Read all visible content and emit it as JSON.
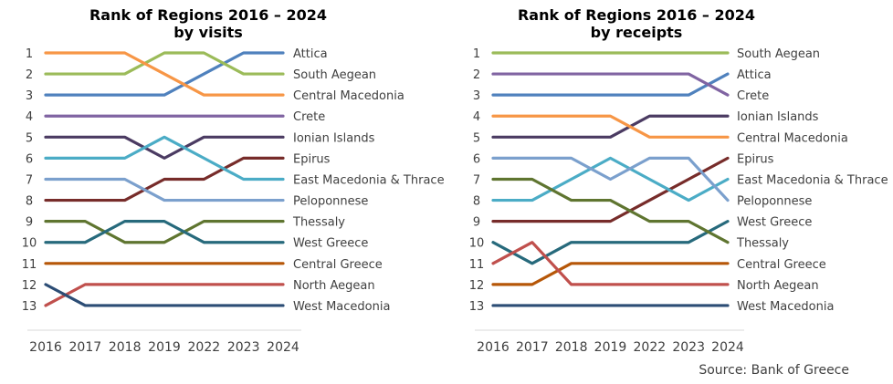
{
  "source": "Source: Bank of Greece",
  "chart_data": [
    {
      "type": "line",
      "title": [
        "Rank of Regions 2016 – 2024",
        "by visits"
      ],
      "categories": [
        "2016",
        "2017",
        "2018",
        "2019",
        "2022",
        "2023",
        "2024"
      ],
      "ylim": [
        13,
        1
      ],
      "yticks": [
        1,
        2,
        3,
        4,
        5,
        6,
        7,
        8,
        9,
        10,
        11,
        12,
        13
      ],
      "grid": false,
      "legend": "right-end-labels",
      "series": [
        {
          "name": "Attica",
          "color": "#4F81BD",
          "values": [
            3,
            3,
            3,
            3,
            2,
            1,
            1
          ]
        },
        {
          "name": "South Aegean",
          "color": "#9BBB59",
          "values": [
            2,
            2,
            2,
            1,
            1,
            2,
            2
          ]
        },
        {
          "name": "Central Macedonia",
          "color": "#F79646",
          "values": [
            1,
            1,
            1,
            2,
            3,
            3,
            3
          ]
        },
        {
          "name": "Crete",
          "color": "#8064A2",
          "values": [
            4,
            4,
            4,
            4,
            4,
            4,
            4
          ]
        },
        {
          "name": "Ionian Islands",
          "color": "#4B3B62",
          "values": [
            5,
            5,
            5,
            6,
            5,
            5,
            5
          ]
        },
        {
          "name": "Epirus",
          "color": "#772C2A",
          "values": [
            8,
            8,
            8,
            7,
            7,
            6,
            6
          ]
        },
        {
          "name": "East Macedonia & Thrace",
          "color": "#4BACC6",
          "values": [
            6,
            6,
            6,
            5,
            6,
            7,
            7
          ]
        },
        {
          "name": "Peloponnese",
          "color": "#7BA0CD",
          "values": [
            7,
            7,
            7,
            8,
            8,
            8,
            8
          ]
        },
        {
          "name": "Thessaly",
          "color": "#5F7530",
          "values": [
            9,
            9,
            10,
            10,
            9,
            9,
            9
          ]
        },
        {
          "name": "West Greece",
          "color": "#276A7C",
          "values": [
            10,
            10,
            9,
            9,
            10,
            10,
            10
          ]
        },
        {
          "name": "Central Greece",
          "color": "#B65708",
          "values": [
            11,
            11,
            11,
            11,
            11,
            11,
            11
          ]
        },
        {
          "name": "North Aegean",
          "color": "#C0504D",
          "values": [
            13,
            12,
            12,
            12,
            12,
            12,
            12
          ]
        },
        {
          "name": "West Macedonia",
          "color": "#2C4D75",
          "values": [
            12,
            13,
            13,
            13,
            13,
            13,
            13
          ]
        }
      ]
    },
    {
      "type": "line",
      "title": [
        "Rank of Regions 2016 – 2024",
        "by receipts"
      ],
      "categories": [
        "2016",
        "2017",
        "2018",
        "2019",
        "2022",
        "2023",
        "2024"
      ],
      "ylim": [
        13,
        1
      ],
      "yticks": [
        1,
        2,
        3,
        4,
        5,
        6,
        7,
        8,
        9,
        10,
        11,
        12,
        13
      ],
      "grid": false,
      "legend": "right-end-labels",
      "series": [
        {
          "name": "South Aegean",
          "color": "#9BBB59",
          "values": [
            1,
            1,
            1,
            1,
            1,
            1,
            1
          ]
        },
        {
          "name": "Attica",
          "color": "#4F81BD",
          "values": [
            3,
            3,
            3,
            3,
            3,
            3,
            2
          ]
        },
        {
          "name": "Crete",
          "color": "#8064A2",
          "values": [
            2,
            2,
            2,
            2,
            2,
            2,
            3
          ]
        },
        {
          "name": "Ionian Islands",
          "color": "#4B3B62",
          "values": [
            5,
            5,
            5,
            5,
            4,
            4,
            4
          ]
        },
        {
          "name": "Central Macedonia",
          "color": "#F79646",
          "values": [
            4,
            4,
            4,
            4,
            5,
            5,
            5
          ]
        },
        {
          "name": "Epirus",
          "color": "#772C2A",
          "values": [
            9,
            9,
            9,
            9,
            8,
            7,
            6
          ]
        },
        {
          "name": "East Macedonia & Thrace",
          "color": "#4BACC6",
          "values": [
            8,
            8,
            7,
            6,
            7,
            8,
            7
          ]
        },
        {
          "name": "Peloponnese",
          "color": "#7BA0CD",
          "values": [
            6,
            6,
            6,
            7,
            6,
            6,
            8
          ]
        },
        {
          "name": "West Greece",
          "color": "#276A7C",
          "values": [
            10,
            11,
            10,
            10,
            10,
            10,
            9
          ]
        },
        {
          "name": "Thessaly",
          "color": "#5F7530",
          "values": [
            7,
            7,
            8,
            8,
            9,
            9,
            10
          ]
        },
        {
          "name": "Central Greece",
          "color": "#B65708",
          "values": [
            12,
            12,
            11,
            11,
            11,
            11,
            11
          ]
        },
        {
          "name": "North Aegean",
          "color": "#C0504D",
          "values": [
            11,
            10,
            12,
            12,
            12,
            12,
            12
          ]
        },
        {
          "name": "West Macedonia",
          "color": "#2C4D75",
          "values": [
            13,
            13,
            13,
            13,
            13,
            13,
            13
          ]
        }
      ]
    }
  ]
}
